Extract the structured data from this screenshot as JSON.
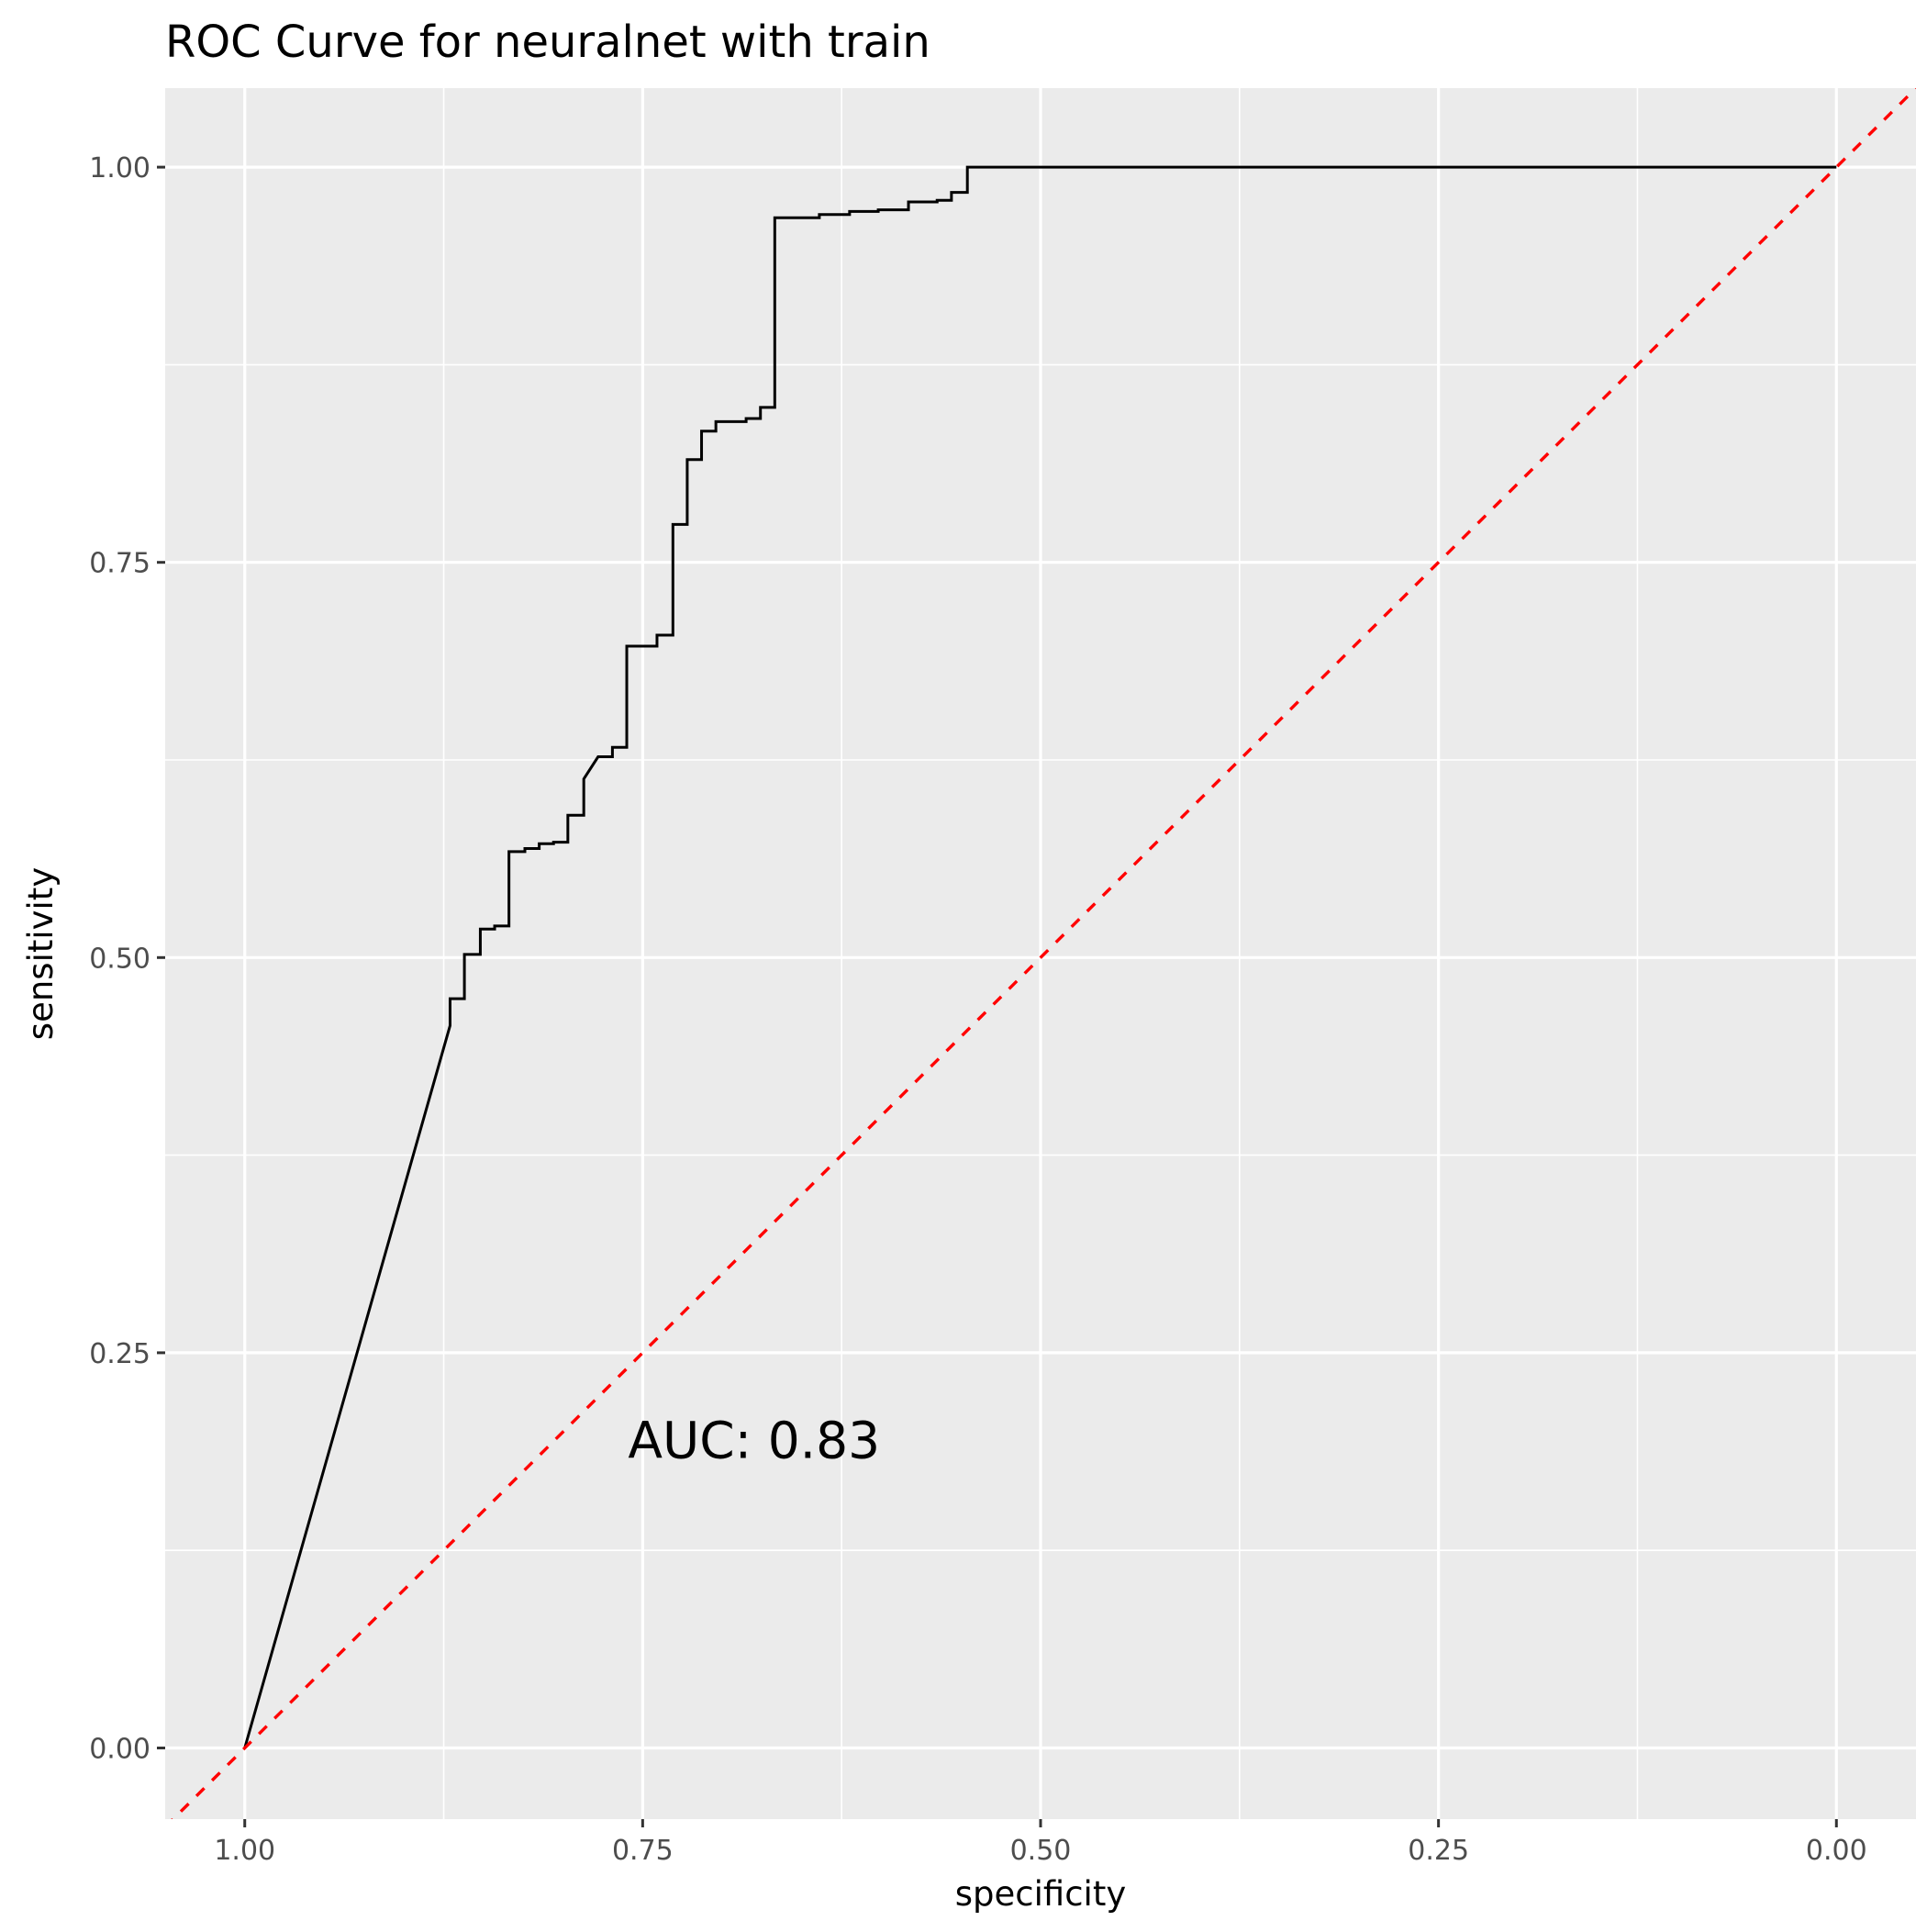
{
  "chart_data": {
    "type": "line",
    "title": "ROC Curve for neuralnet with train",
    "xlabel": "specificity",
    "ylabel": "sensitivity",
    "x_reversed": true,
    "xlim": [
      1.05,
      -0.05
    ],
    "ylim": [
      -0.045,
      1.05
    ],
    "x_ticks": [
      1.0,
      0.75,
      0.5,
      0.25,
      0.0
    ],
    "x_tick_labels": [
      "1.00",
      "0.75",
      "0.50",
      "0.25",
      "0.00"
    ],
    "y_ticks": [
      0.0,
      0.25,
      0.5,
      0.75,
      1.0
    ],
    "y_tick_labels": [
      "0.00",
      "0.25",
      "0.50",
      "0.75",
      "1.00"
    ],
    "grid": true,
    "annotation": {
      "text": "AUC: 0.83",
      "x": 0.68,
      "y": 0.195
    },
    "series": [
      {
        "style": "solid",
        "color": "#000000",
        "points": [
          [
            1.0,
            0.0
          ],
          [
            0.871,
            0.457
          ],
          [
            0.871,
            0.474
          ],
          [
            0.862,
            0.474
          ],
          [
            0.862,
            0.502
          ],
          [
            0.852,
            0.502
          ],
          [
            0.852,
            0.518
          ],
          [
            0.843,
            0.518
          ],
          [
            0.843,
            0.52
          ],
          [
            0.834,
            0.52
          ],
          [
            0.834,
            0.567
          ],
          [
            0.824,
            0.567
          ],
          [
            0.824,
            0.569
          ],
          [
            0.815,
            0.569
          ],
          [
            0.815,
            0.572
          ],
          [
            0.806,
            0.572
          ],
          [
            0.806,
            0.573
          ],
          [
            0.797,
            0.573
          ],
          [
            0.797,
            0.59
          ],
          [
            0.787,
            0.59
          ],
          [
            0.787,
            0.613
          ],
          [
            0.778,
            0.627
          ],
          [
            0.769,
            0.627
          ],
          [
            0.769,
            0.633
          ],
          [
            0.76,
            0.633
          ],
          [
            0.76,
            0.697
          ],
          [
            0.741,
            0.697
          ],
          [
            0.741,
            0.704
          ],
          [
            0.731,
            0.704
          ],
          [
            0.731,
            0.774
          ],
          [
            0.722,
            0.774
          ],
          [
            0.722,
            0.815
          ],
          [
            0.713,
            0.815
          ],
          [
            0.713,
            0.833
          ],
          [
            0.704,
            0.833
          ],
          [
            0.704,
            0.839
          ],
          [
            0.685,
            0.839
          ],
          [
            0.685,
            0.841
          ],
          [
            0.676,
            0.841
          ],
          [
            0.676,
            0.848
          ],
          [
            0.667,
            0.848
          ],
          [
            0.667,
            0.968
          ],
          [
            0.639,
            0.968
          ],
          [
            0.639,
            0.97
          ],
          [
            0.62,
            0.97
          ],
          [
            0.62,
            0.972
          ],
          [
            0.602,
            0.972
          ],
          [
            0.602,
            0.973
          ],
          [
            0.583,
            0.973
          ],
          [
            0.583,
            0.978
          ],
          [
            0.565,
            0.978
          ],
          [
            0.565,
            0.979
          ],
          [
            0.556,
            0.979
          ],
          [
            0.556,
            0.984
          ],
          [
            0.546,
            0.984
          ],
          [
            0.546,
            1.0
          ],
          [
            0.0,
            1.0
          ]
        ]
      },
      {
        "style": "dashed",
        "color": "#ff0000",
        "role": "reference-diagonal",
        "points": [
          [
            1.05,
            -0.05
          ],
          [
            -0.05,
            1.05
          ]
        ]
      }
    ]
  }
}
